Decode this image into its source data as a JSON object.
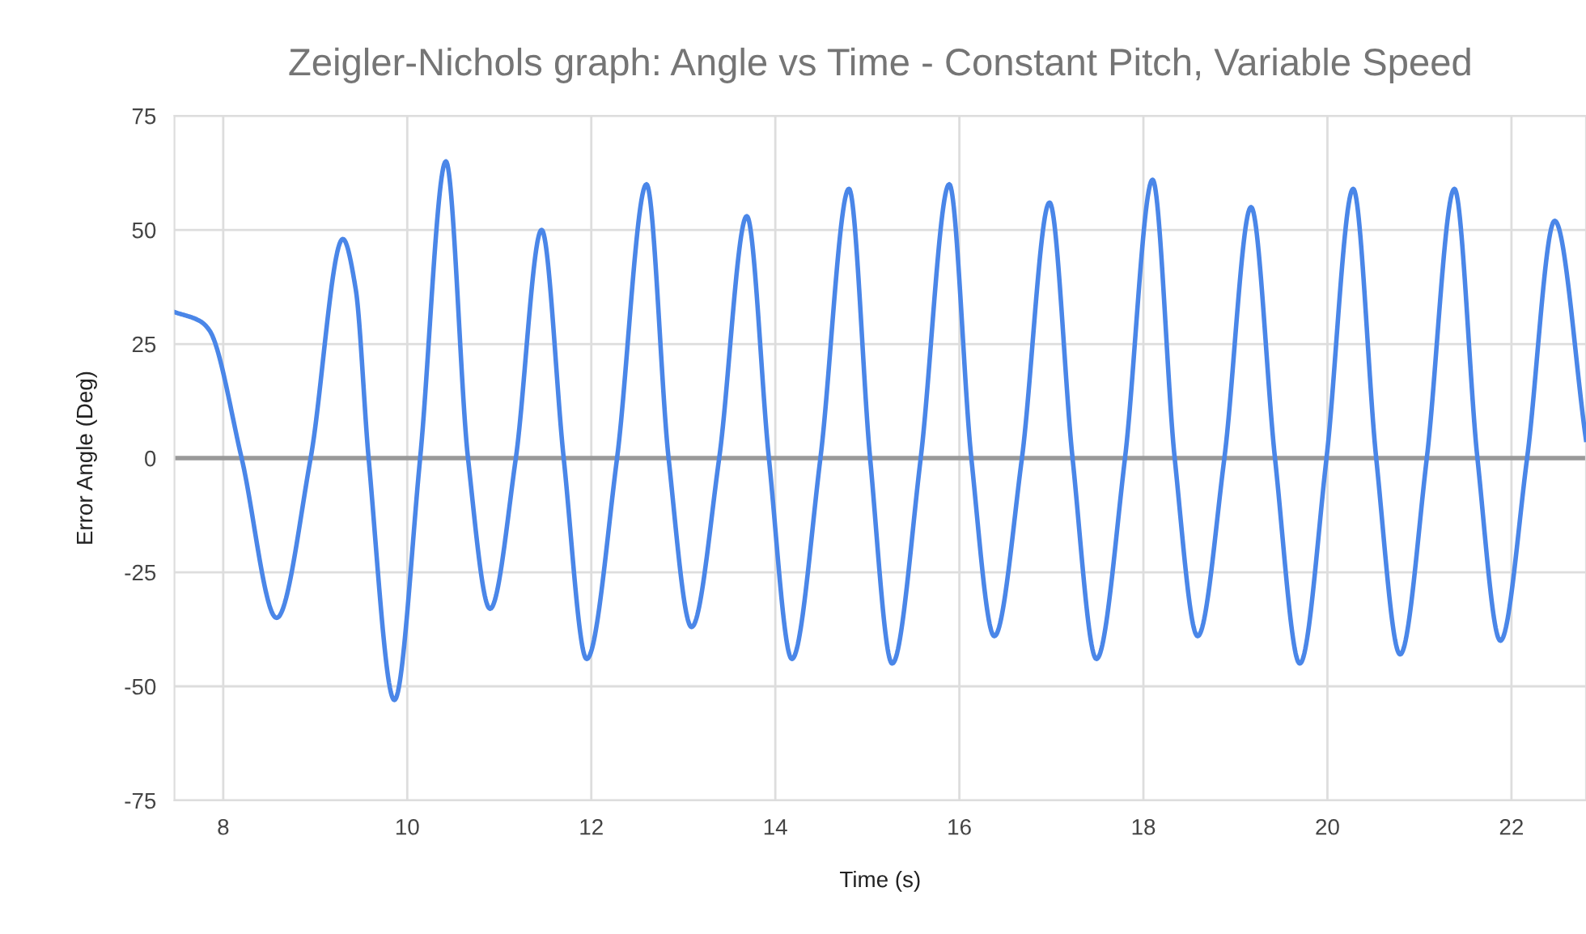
{
  "chart_data": {
    "type": "line",
    "title": "Zeigler-Nichols graph: Angle vs Time - Constant Pitch, Variable Speed",
    "xlabel": "Time (s)",
    "ylabel": "Error Angle (Deg)",
    "xlim": [
      7.47,
      22.81
    ],
    "xticks": [
      8,
      10,
      12,
      14,
      16,
      18,
      20,
      22
    ],
    "ylim": [
      -75,
      75
    ],
    "yticks": [
      -75,
      -50,
      -25,
      0,
      25,
      50,
      75
    ],
    "grid": true,
    "legend": false,
    "marker": "none",
    "line_style": "solid",
    "ref_lines": [
      {
        "axis": "y",
        "value": 0,
        "color": "#999999"
      }
    ],
    "series": [
      {
        "color": "#4a86e8",
        "x": [
          7.47,
          7.75,
          7.85,
          8.2,
          8.58,
          8.95,
          9.3,
          9.44,
          9.58,
          9.86,
          10.14,
          10.42,
          10.66,
          10.9,
          11.18,
          11.46,
          11.7,
          11.95,
          12.28,
          12.6,
          12.84,
          13.09,
          13.39,
          13.69,
          13.93,
          14.18,
          14.49,
          14.8,
          15.03,
          15.27,
          15.58,
          15.89,
          16.13,
          16.38,
          16.68,
          16.98,
          17.23,
          17.49,
          17.8,
          18.1,
          18.34,
          18.59,
          18.88,
          19.17,
          19.43,
          19.7,
          19.99,
          20.28,
          20.53,
          20.79,
          21.08,
          21.38,
          21.63,
          21.88,
          22.17,
          22.47,
          22.81
        ],
        "values": [
          32,
          30,
          28,
          0,
          -35,
          0,
          48,
          37,
          0,
          -53,
          0,
          65,
          0,
          -33,
          0,
          50,
          0,
          -44,
          0,
          60,
          0,
          -37,
          0,
          53,
          0,
          -44,
          0,
          59,
          0,
          -45,
          0,
          60,
          0,
          -39,
          0,
          56,
          0,
          -44,
          0,
          61,
          0,
          -39,
          0,
          55,
          0,
          -45,
          0,
          59,
          0,
          -43,
          0,
          59,
          0,
          -40,
          0,
          52,
          4
        ]
      }
    ]
  }
}
